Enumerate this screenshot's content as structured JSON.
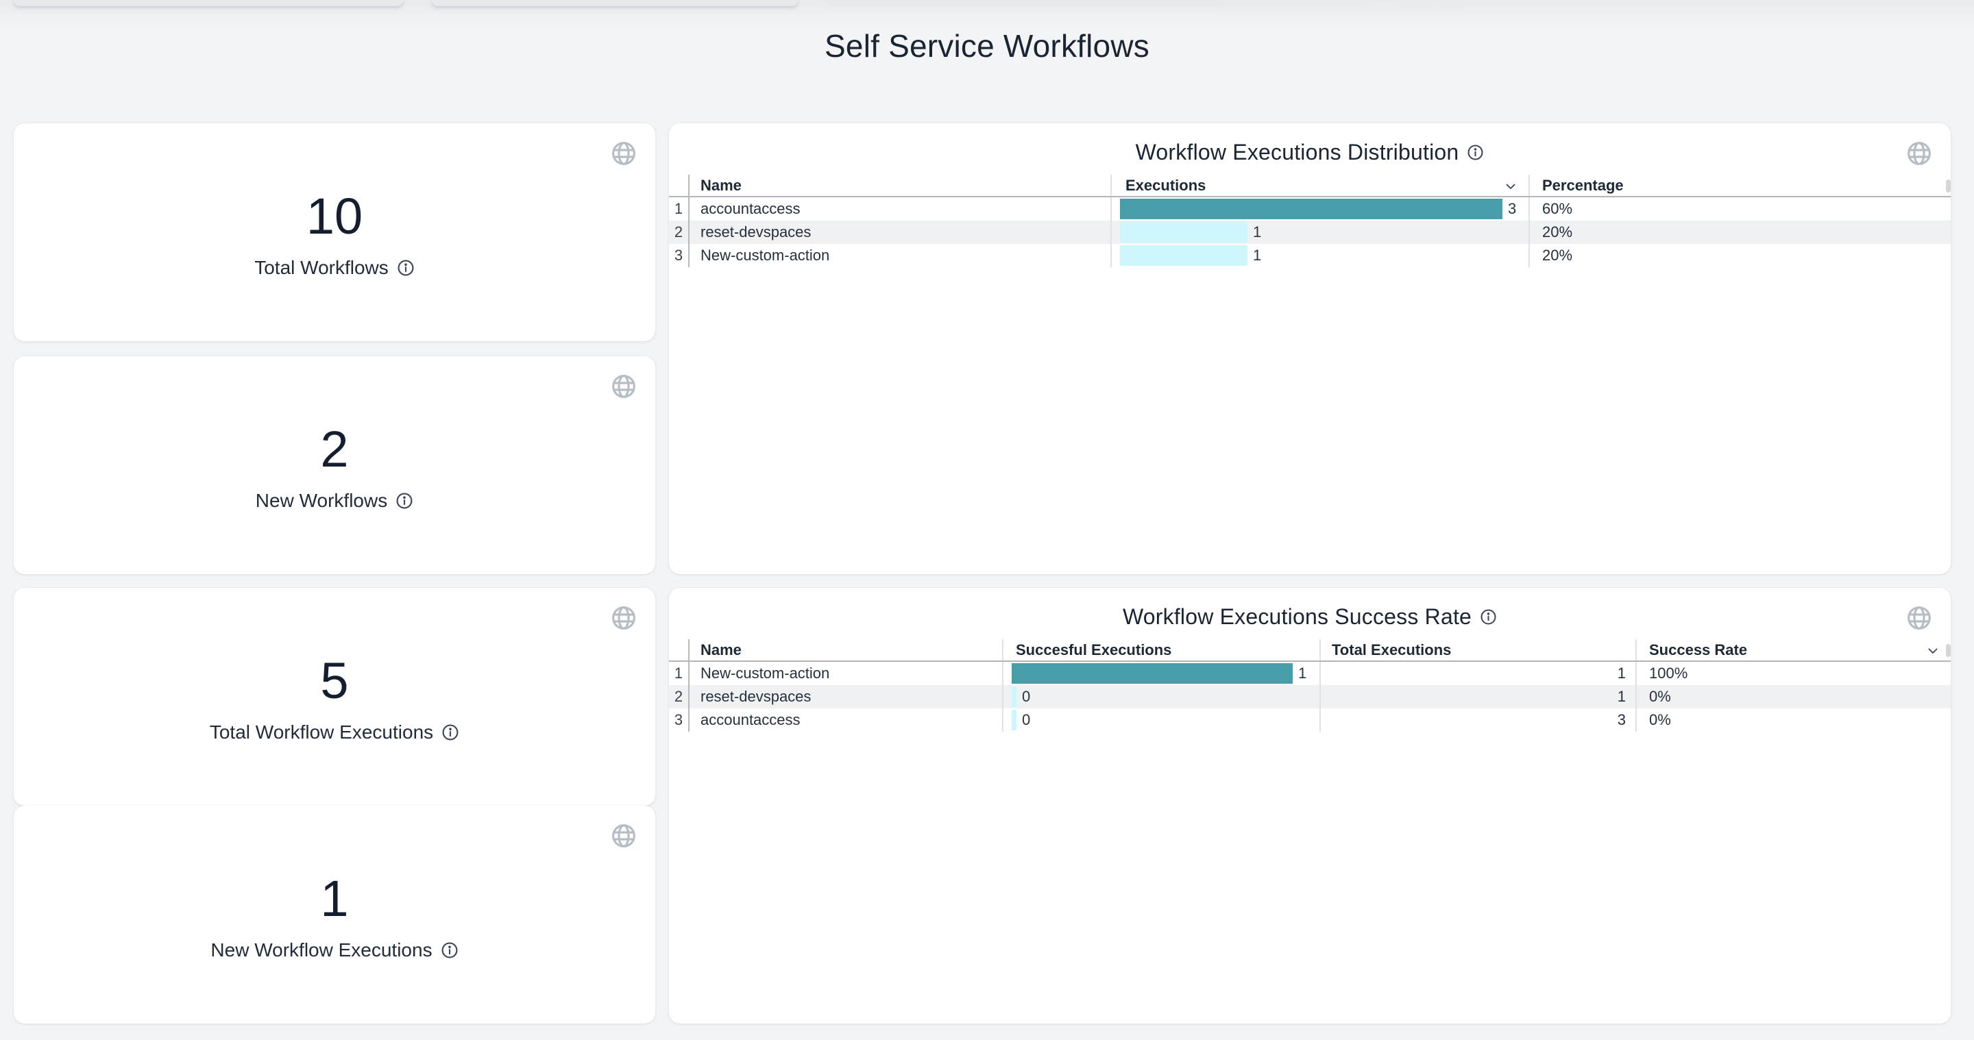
{
  "page": {
    "title": "Self Service Workflows"
  },
  "colors": {
    "background": "#f3f4f6",
    "card_background": "#ffffff",
    "text_dark": "#1b2433",
    "bar_teal": "#489ea8",
    "bar_cyan": "#cdf6fd",
    "row_stripe": "#f0f1f2",
    "globe_icon": "#b7bdc5"
  },
  "stat_cards": [
    {
      "value": "10",
      "label": "Total Workflows"
    },
    {
      "value": "2",
      "label": "New Workflows"
    },
    {
      "value": "5",
      "label": "Total Workflow Executions"
    },
    {
      "value": "1",
      "label": "New Workflow Executions"
    }
  ],
  "distribution": {
    "title": "Workflow Executions Distribution",
    "col_name": "Name",
    "col_executions": "Executions",
    "col_percentage": "Percentage",
    "sorted_column": "Executions",
    "max_executions": 3,
    "rows": [
      {
        "index": "1",
        "name": "accountaccess",
        "executions": "3",
        "percentage": "60%",
        "bar_color": "#489ea8"
      },
      {
        "index": "2",
        "name": "reset-devspaces",
        "executions": "1",
        "percentage": "20%",
        "bar_color": "#cdf6fd"
      },
      {
        "index": "3",
        "name": "New-custom-action",
        "executions": "1",
        "percentage": "20%",
        "bar_color": "#cdf6fd"
      }
    ]
  },
  "success": {
    "title": "Workflow Executions Success Rate",
    "col_name": "Name",
    "col_successful": "Succesful Executions",
    "col_total": "Total Executions",
    "col_rate": "Success Rate",
    "sorted_column": "Succesful Executions",
    "max_successful": 1,
    "rows": [
      {
        "index": "1",
        "name": "New-custom-action",
        "successful": "1",
        "total": "1",
        "rate": "100%",
        "bar_color": "#489ea8"
      },
      {
        "index": "2",
        "name": "reset-devspaces",
        "successful": "0",
        "total": "1",
        "rate": "0%",
        "bar_color": "#cdf6fd"
      },
      {
        "index": "3",
        "name": "accountaccess",
        "successful": "0",
        "total": "3",
        "rate": "0%",
        "bar_color": "#cdf6fd"
      }
    ]
  },
  "chart_data": [
    {
      "type": "bar",
      "title": "Workflow Executions Distribution",
      "categories": [
        "accountaccess",
        "reset-devspaces",
        "New-custom-action"
      ],
      "values": [
        3,
        1,
        1
      ],
      "percentages": [
        "60%",
        "20%",
        "20%"
      ],
      "xlabel": "Executions",
      "ylabel": "Name",
      "xlim": [
        0,
        3
      ]
    },
    {
      "type": "bar",
      "title": "Workflow Executions Success Rate",
      "categories": [
        "New-custom-action",
        "reset-devspaces",
        "accountaccess"
      ],
      "series": [
        {
          "name": "Succesful Executions",
          "values": [
            1,
            0,
            0
          ]
        },
        {
          "name": "Total Executions",
          "values": [
            1,
            1,
            3
          ]
        },
        {
          "name": "Success Rate",
          "values": [
            "100%",
            "0%",
            "0%"
          ]
        }
      ],
      "xlim": [
        0,
        1
      ]
    }
  ]
}
